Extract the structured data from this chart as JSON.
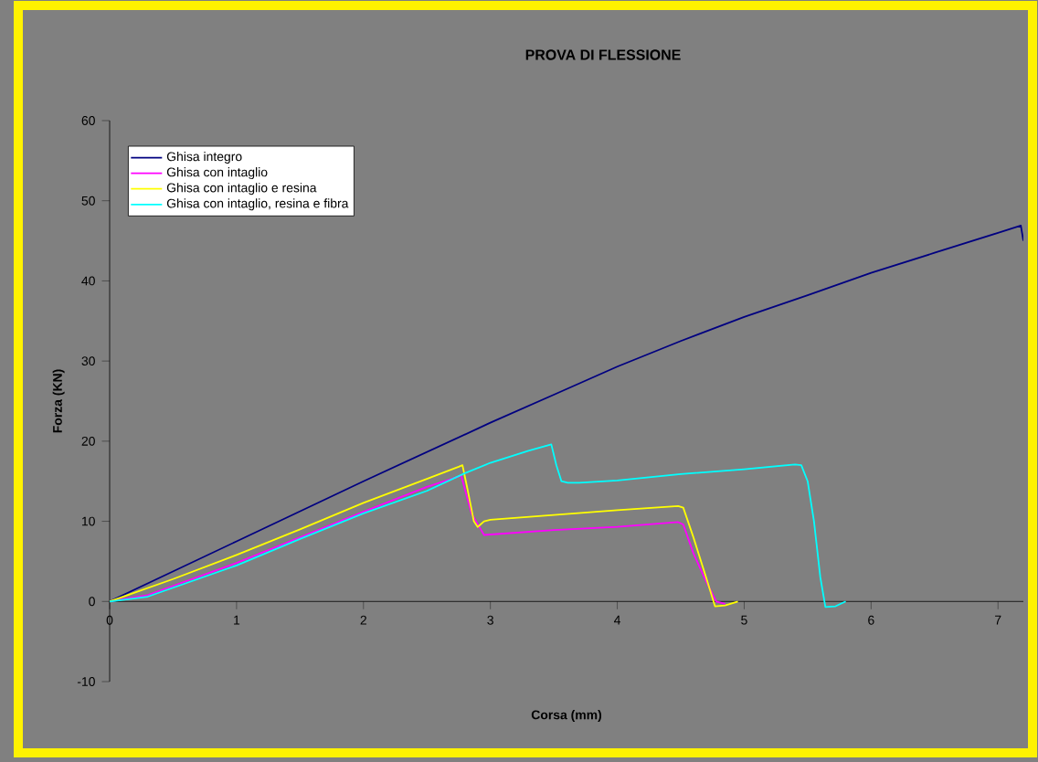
{
  "chart_data": {
    "type": "line",
    "title": "PROVA DI FLESSIONE",
    "xlabel": "Corsa (mm)",
    "ylabel": "Forza (KN)",
    "xlim": [
      0,
      7.2
    ],
    "ylim": [
      -10,
      60
    ],
    "xticks": [
      0,
      1,
      2,
      3,
      4,
      5,
      6,
      7
    ],
    "yticks": [
      -10,
      0,
      10,
      20,
      30,
      40,
      50,
      60
    ],
    "grid": false,
    "legend": "top left",
    "marker": "none",
    "line_style": "solid",
    "series": [
      {
        "name": "Ghisa integro",
        "color": "#000080",
        "x": [
          0,
          1,
          2,
          3,
          3.5,
          4,
          4.5,
          5,
          5.5,
          6,
          6.5,
          7,
          7.18,
          7.2
        ],
        "values": [
          0,
          7.5,
          15,
          22.3,
          25.8,
          29.3,
          32.5,
          35.5,
          38.2,
          41,
          43.5,
          46,
          46.9,
          45
        ]
      },
      {
        "name": "Ghisa con intaglio",
        "color": "#ff00ff",
        "x": [
          0,
          0.3,
          1,
          1.5,
          2,
          2.5,
          2.77,
          2.85,
          2.95,
          3.5,
          4,
          4.48,
          4.52,
          4.6,
          4.7,
          4.78,
          4.85
        ],
        "values": [
          0,
          0.8,
          4.8,
          8,
          11.2,
          14.3,
          15.7,
          11,
          8.3,
          8.9,
          9.3,
          9.9,
          9.6,
          6,
          2.5,
          0,
          -0.3
        ]
      },
      {
        "name": "Ghisa con intaglio e resina",
        "color": "#ffff00",
        "x": [
          0,
          0.5,
          1,
          1.5,
          2,
          2.5,
          2.75,
          2.78,
          2.82,
          2.87,
          2.9,
          2.95,
          3,
          3.5,
          4,
          4.48,
          4.52,
          4.6,
          4.7,
          4.77,
          4.85,
          4.95
        ],
        "values": [
          0,
          2.8,
          5.8,
          9,
          12.3,
          15.3,
          16.8,
          17,
          14,
          10,
          9.3,
          10,
          10.2,
          10.8,
          11.4,
          11.9,
          11.7,
          8,
          3,
          -0.6,
          -0.5,
          0
        ]
      },
      {
        "name": "Ghisa con intaglio, resina e fibra",
        "color": "#00ffff",
        "x": [
          0,
          0.3,
          1,
          1.5,
          2,
          2.5,
          2.8,
          3,
          3.3,
          3.48,
          3.52,
          3.56,
          3.61,
          3.7,
          4,
          4.5,
          5,
          5.4,
          5.45,
          5.5,
          5.55,
          5.6,
          5.64,
          5.72,
          5.8
        ],
        "values": [
          0,
          0.6,
          4.5,
          7.8,
          11,
          13.8,
          16,
          17.3,
          18.8,
          19.6,
          17,
          15,
          14.8,
          14.8,
          15.1,
          15.9,
          16.5,
          17.1,
          17,
          15,
          10,
          3,
          -0.7,
          -0.6,
          0
        ]
      }
    ]
  }
}
